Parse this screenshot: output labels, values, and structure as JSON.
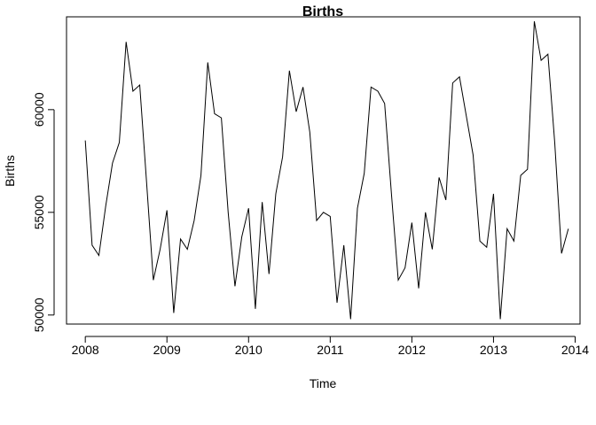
{
  "chart_data": {
    "type": "line",
    "title": "Births",
    "xlabel": "Time",
    "ylabel": "Births",
    "xlim": [
      2007.77,
      2014.06
    ],
    "ylim": [
      49560,
      64520
    ],
    "x_ticks": [
      2008,
      2009,
      2010,
      2011,
      2012,
      2013,
      2014
    ],
    "y_ticks": [
      50000,
      55000,
      60000
    ],
    "grid": false,
    "series": [
      {
        "start": 2008,
        "frequency": 12,
        "values": [
          58500,
          53400,
          52900,
          55300,
          57400,
          58400,
          63300,
          60900,
          61200,
          56500,
          51700,
          53200,
          55100,
          50100,
          53700,
          53200,
          54600,
          56800,
          62300,
          59800,
          59600,
          55000,
          51400,
          53800,
          55200,
          50300,
          55500,
          52000,
          55900,
          57700,
          61900,
          59900,
          61100,
          58900,
          54600,
          55000,
          54800,
          50600,
          53400,
          49800,
          55200,
          56900,
          61100,
          60900,
          60300,
          55900,
          51700,
          52300,
          54500,
          51300,
          55000,
          53200,
          56700,
          55600,
          61300,
          61600,
          59700,
          57800,
          53600,
          53300,
          55900,
          49800,
          54200,
          53600,
          56800,
          57100,
          64300,
          62400,
          62700,
          58400,
          53000,
          54200
        ]
      }
    ]
  }
}
